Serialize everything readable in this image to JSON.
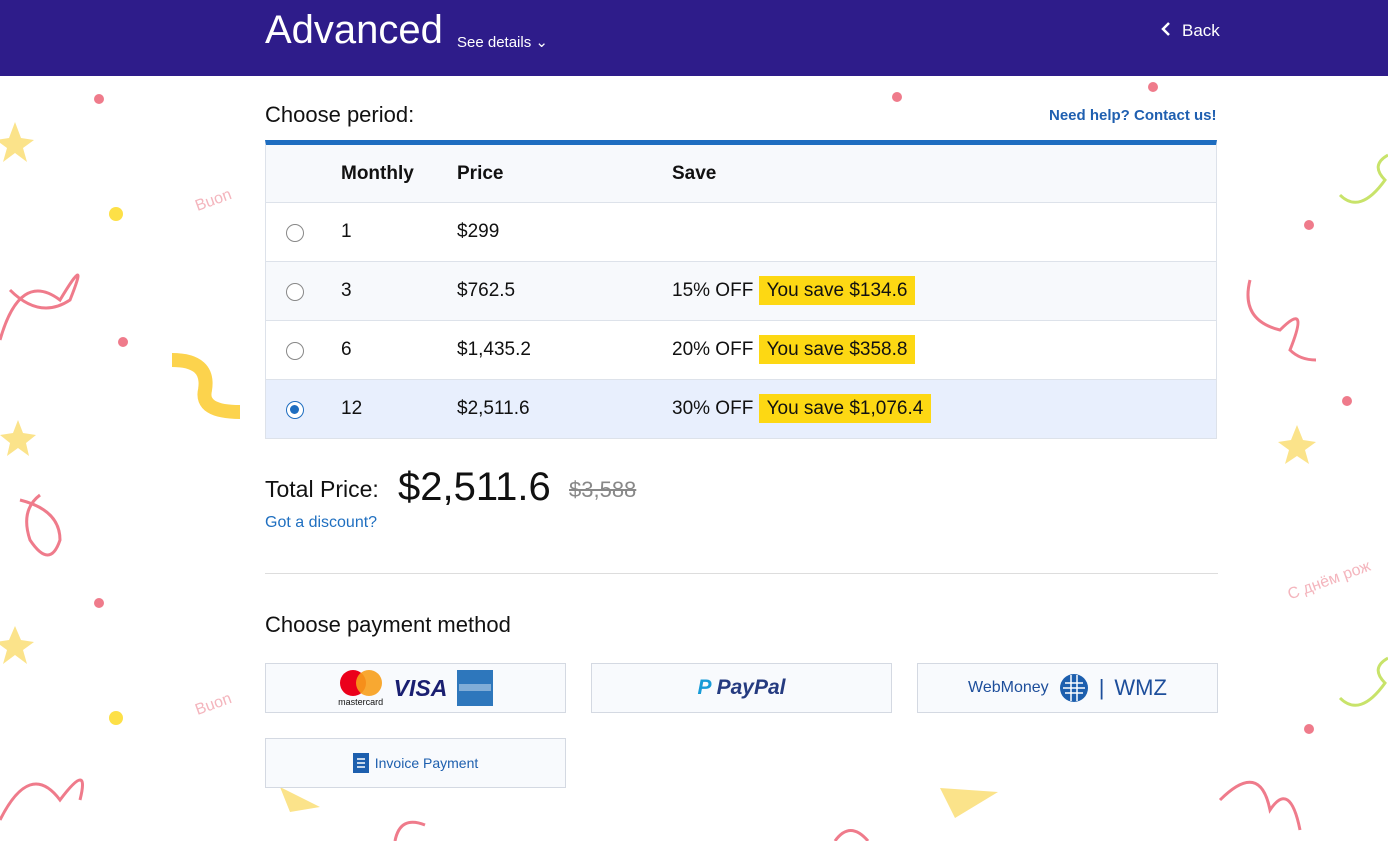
{
  "header": {
    "title": "Advanced",
    "details": "See details",
    "back": "Back"
  },
  "period": {
    "title": "Choose period:",
    "help": "Need help? Contact us!",
    "table": {
      "columns": [
        "Monthly",
        "Price",
        "Save"
      ],
      "rows": [
        {
          "months": "1",
          "price": "$299",
          "selected": false
        },
        {
          "months": "3",
          "price": "$762.5",
          "off": "15% OFF",
          "save": "You save $134.6",
          "selected": false
        },
        {
          "months": "6",
          "price": "$1,435.2",
          "off": "20% OFF",
          "save": "You save $358.8",
          "selected": false
        },
        {
          "months": "12",
          "price": "$2,511.6",
          "off": "30% OFF",
          "save": "You save $1,076.4",
          "selected": true
        }
      ]
    }
  },
  "total": {
    "label": "Total Price:",
    "price": "$2,511.6",
    "old_price": "$3,588",
    "discount": "Got a discount?"
  },
  "payment": {
    "title": "Choose payment method",
    "methods": {
      "card": [
        "mastercard",
        "VISA"
      ],
      "paypal": "PayPal",
      "webmoney": [
        "WebMoney",
        "WMZ"
      ],
      "invoice": "Invoice Payment"
    }
  },
  "decor": [
    "Buon",
    "С днём рож"
  ]
}
